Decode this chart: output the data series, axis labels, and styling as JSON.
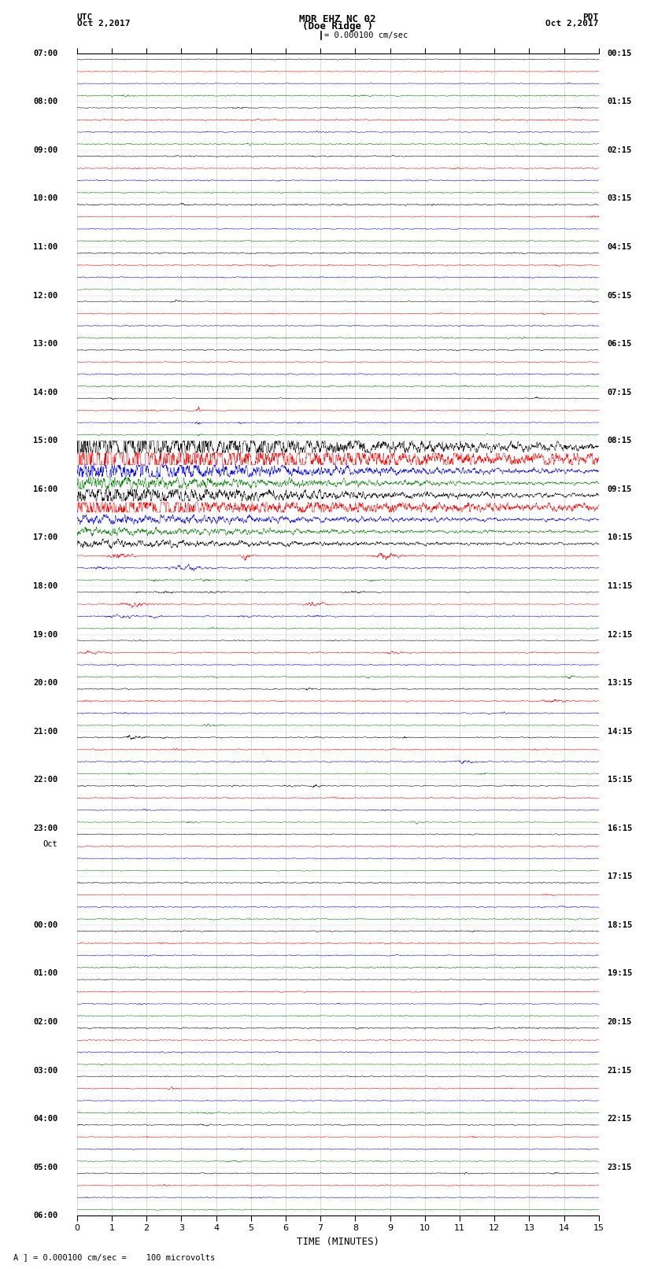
{
  "title_line1": "MDR EHZ NC 02",
  "title_line2": "(Doe Ridge )",
  "scale_label": "= 0.000100 cm/sec",
  "utc_label": "UTC",
  "utc_date": "Oct 2,2017",
  "pdt_label": "PDT",
  "pdt_date": "Oct 2,2017",
  "xlabel": "TIME (MINUTES)",
  "bottom_label": "A ] = 0.000100 cm/sec =    100 microvolts",
  "colors": [
    "black",
    "red",
    "blue",
    "green"
  ],
  "num_rows": 96,
  "time_minutes": 15,
  "background_color": "white",
  "seed": 42,
  "hour_labels_left": [
    "07:00",
    "08:00",
    "09:00",
    "10:00",
    "11:00",
    "12:00",
    "13:00",
    "14:00",
    "15:00",
    "16:00",
    "17:00",
    "18:00",
    "19:00",
    "20:00",
    "21:00",
    "22:00",
    "23:00",
    "Oct",
    "00:00",
    "01:00",
    "02:00",
    "03:00",
    "04:00",
    "05:00",
    "06:00"
  ],
  "hour_labels_right": [
    "00:15",
    "01:15",
    "02:15",
    "03:15",
    "04:15",
    "05:15",
    "06:15",
    "07:15",
    "08:15",
    "09:15",
    "10:15",
    "11:15",
    "12:15",
    "13:15",
    "14:15",
    "15:15",
    "16:15",
    "17:15",
    "18:15",
    "19:15",
    "20:15",
    "21:15",
    "22:15",
    "23:15"
  ]
}
